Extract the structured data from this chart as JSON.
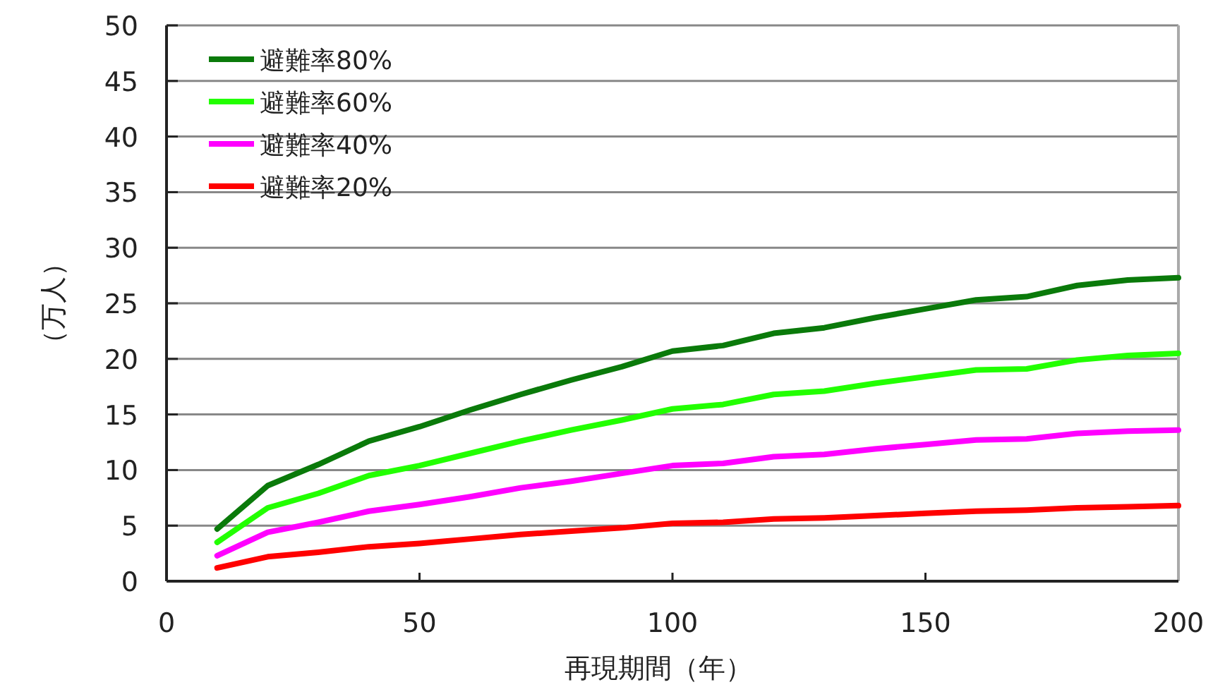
{
  "chart_data": {
    "type": "line",
    "xlabel": "再現期間（年）",
    "ylabel": "（万人）",
    "x": [
      10,
      20,
      30,
      40,
      50,
      60,
      70,
      80,
      90,
      100,
      110,
      120,
      130,
      140,
      150,
      160,
      170,
      180,
      190,
      200
    ],
    "xlim": [
      0,
      200
    ],
    "xticks": [
      0,
      50,
      100,
      150,
      200
    ],
    "ylim": [
      0,
      50
    ],
    "yticks": [
      0,
      5,
      10,
      15,
      20,
      25,
      30,
      35,
      40,
      45,
      50
    ],
    "grid": "y",
    "legend": "top left",
    "marker": "none",
    "line_style": "solid",
    "series": [
      {
        "name": "避難率80%",
        "color": "#0a7a0a",
        "values": [
          4.7,
          8.6,
          10.5,
          12.6,
          13.9,
          15.4,
          16.8,
          18.1,
          19.3,
          20.7,
          21.2,
          22.3,
          22.8,
          23.7,
          24.5,
          25.3,
          25.6,
          26.6,
          27.1,
          27.3
        ]
      },
      {
        "name": "避難率60%",
        "color": "#22ff00",
        "values": [
          3.5,
          6.6,
          7.9,
          9.5,
          10.4,
          11.5,
          12.6,
          13.6,
          14.5,
          15.5,
          15.9,
          16.8,
          17.1,
          17.8,
          18.4,
          19.0,
          19.1,
          19.9,
          20.3,
          20.5
        ]
      },
      {
        "name": "避難率40%",
        "color": "#ff00ff",
        "values": [
          2.3,
          4.4,
          5.3,
          6.3,
          6.9,
          7.6,
          8.4,
          9.0,
          9.7,
          10.4,
          10.6,
          11.2,
          11.4,
          11.9,
          12.3,
          12.7,
          12.8,
          13.3,
          13.5,
          13.6
        ]
      },
      {
        "name": "避難率20%",
        "color": "#ff0000",
        "values": [
          1.2,
          2.2,
          2.6,
          3.1,
          3.4,
          3.8,
          4.2,
          4.5,
          4.8,
          5.2,
          5.3,
          5.6,
          5.7,
          5.9,
          6.1,
          6.3,
          6.4,
          6.6,
          6.7,
          6.8
        ]
      }
    ]
  }
}
